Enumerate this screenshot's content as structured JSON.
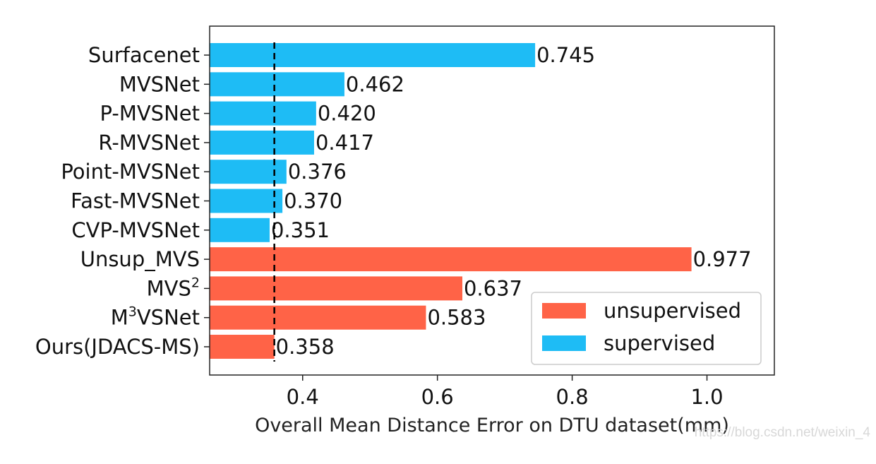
{
  "chart_data": {
    "type": "bar",
    "orientation": "horizontal",
    "xlabel": "Overall Mean Distance Error on DTU dataset(mm)",
    "xlim": [
      0.262,
      1.1
    ],
    "xticks": [
      "0.4",
      "0.6",
      "0.8",
      "1.0"
    ],
    "xtick_values": [
      0.4,
      0.6,
      0.8,
      1.0
    ],
    "reference_line": {
      "value": 0.358,
      "style": "dashed",
      "color": "#000000"
    },
    "categories": [
      "Surfacenet",
      "MVSNet",
      "P-MVSNet",
      "R-MVSNet",
      "Point-MVSNet",
      "Fast-MVSNet",
      "CVP-MVSNet",
      "Unsup_MVS",
      "MVS2",
      "M3VSNet",
      "Ours(JDACS-MS)"
    ],
    "category_labels": [
      {
        "pre": "",
        "sup": "",
        "post": "Surfacenet"
      },
      {
        "pre": "",
        "sup": "",
        "post": "MVSNet"
      },
      {
        "pre": "",
        "sup": "",
        "post": "P-MVSNet"
      },
      {
        "pre": "",
        "sup": "",
        "post": "R-MVSNet"
      },
      {
        "pre": "",
        "sup": "",
        "post": "Point-MVSNet"
      },
      {
        "pre": "",
        "sup": "",
        "post": "Fast-MVSNet"
      },
      {
        "pre": "",
        "sup": "",
        "post": "CVP-MVSNet"
      },
      {
        "pre": "",
        "sup": "",
        "post": "Unsup_MVS"
      },
      {
        "pre": "MVS",
        "sup": "2",
        "post": ""
      },
      {
        "pre": "M",
        "sup": "3",
        "post": "VSNet"
      },
      {
        "pre": "",
        "sup": "",
        "post": "Ours(JDACS-MS)"
      }
    ],
    "values": [
      0.745,
      0.462,
      0.42,
      0.417,
      0.376,
      0.37,
      0.351,
      0.977,
      0.637,
      0.583,
      0.358
    ],
    "value_labels": [
      "0.745",
      "0.462",
      "0.420",
      "0.417",
      "0.376",
      "0.370",
      "0.351",
      "0.977",
      "0.637",
      "0.583",
      "0.358"
    ],
    "groups": [
      "supervised",
      "supervised",
      "supervised",
      "supervised",
      "supervised",
      "supervised",
      "supervised",
      "unsupervised",
      "unsupervised",
      "unsupervised",
      "unsupervised"
    ],
    "legend": {
      "position": "lower-right",
      "entries": [
        {
          "name": "unsupervised",
          "color": "#ff6347"
        },
        {
          "name": "supervised",
          "color": "#1ebcf5"
        }
      ]
    },
    "grid": false
  },
  "watermark": "https://blog.csdn.net/weixin_4"
}
